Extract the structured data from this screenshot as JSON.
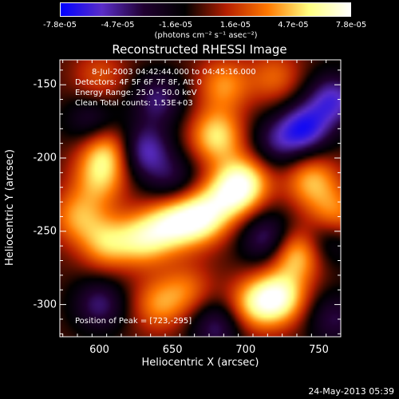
{
  "colorbar": {
    "tick_labels": [
      "-7.8e-05",
      "-4.7e-05",
      "-1.6e-05",
      "1.6e-05",
      "4.7e-05",
      "7.8e-05"
    ],
    "tick_values": [
      -7.8e-05,
      -4.7e-05,
      -1.6e-05,
      1.6e-05,
      4.7e-05,
      7.8e-05
    ],
    "unit_label": "(photons cm⁻² s⁻¹ asec⁻²)",
    "range": [
      -7.8e-05,
      7.8e-05
    ]
  },
  "chart_data": {
    "type": "heatmap",
    "title": "Reconstructed RHESSI Image",
    "xlabel": "Heliocentric X (arcsec)",
    "ylabel": "Heliocentric Y (arcsec)",
    "xlim": [
      573,
      765
    ],
    "ylim": [
      -322,
      -133
    ],
    "xticks": [
      600,
      650,
      700,
      750
    ],
    "yticks": [
      -150,
      -200,
      -250,
      -300
    ],
    "colormap": [
      "#0000ff",
      "#5a2dc8",
      "#200030",
      "#000000",
      "#b41e00",
      "#ff7800",
      "#ffff80",
      "#ffffff"
    ],
    "annotations": {
      "time_range": "8-Jul-2003 04:42:44.000 to 04:45:16.000",
      "detectors": "Detectors: 4F 5F 6F 7F 8F, Att 0",
      "energy": "Energy Range: 25.0 - 50.0 keV",
      "clean": "Clean    Total counts: 1.53E+03",
      "peak": "Position of Peak = [723,-295]"
    },
    "peak": [
      723,
      -295
    ],
    "sources": [
      {
        "x": 670,
        "y": -240,
        "amp": 1.0
      },
      {
        "x": 650,
        "y": -245,
        "amp": 0.9
      },
      {
        "x": 630,
        "y": -255,
        "amp": 0.8
      },
      {
        "x": 605,
        "y": -258,
        "amp": 0.7
      },
      {
        "x": 690,
        "y": -225,
        "amp": 0.8
      },
      {
        "x": 700,
        "y": -215,
        "amp": 0.75
      },
      {
        "x": 680,
        "y": -185,
        "amp": 0.85
      },
      {
        "x": 685,
        "y": -150,
        "amp": 0.6
      },
      {
        "x": 605,
        "y": -195,
        "amp": 0.8
      },
      {
        "x": 600,
        "y": -215,
        "amp": 0.6
      },
      {
        "x": 585,
        "y": -240,
        "amp": 0.6
      },
      {
        "x": 723,
        "y": -295,
        "amp": 1.0
      },
      {
        "x": 705,
        "y": -300,
        "amp": 0.7
      },
      {
        "x": 735,
        "y": -265,
        "amp": 0.9
      },
      {
        "x": 745,
        "y": -215,
        "amp": 0.7
      },
      {
        "x": 760,
        "y": -240,
        "amp": 0.7
      },
      {
        "x": 640,
        "y": -300,
        "amp": 0.55
      },
      {
        "x": 660,
        "y": -290,
        "amp": 0.45
      },
      {
        "x": 720,
        "y": -145,
        "amp": 0.45
      },
      {
        "x": 600,
        "y": -145,
        "amp": 0.4
      },
      {
        "x": 740,
        "y": -180,
        "amp": -0.9
      },
      {
        "x": 760,
        "y": -160,
        "amp": -0.8
      },
      {
        "x": 755,
        "y": -255,
        "amp": -0.6
      },
      {
        "x": 630,
        "y": -195,
        "amp": -0.8
      },
      {
        "x": 640,
        "y": -160,
        "amp": -0.6
      },
      {
        "x": 715,
        "y": -255,
        "amp": -0.7
      },
      {
        "x": 680,
        "y": -315,
        "amp": -0.6
      },
      {
        "x": 600,
        "y": -300,
        "amp": -0.6
      },
      {
        "x": 595,
        "y": -175,
        "amp": -0.5
      },
      {
        "x": 720,
        "y": -190,
        "amp": -0.5
      },
      {
        "x": 650,
        "y": -215,
        "amp": -0.45
      },
      {
        "x": 760,
        "y": -310,
        "amp": -0.5
      }
    ]
  },
  "footer": {
    "timestamp": "24-May-2013 05:39"
  }
}
